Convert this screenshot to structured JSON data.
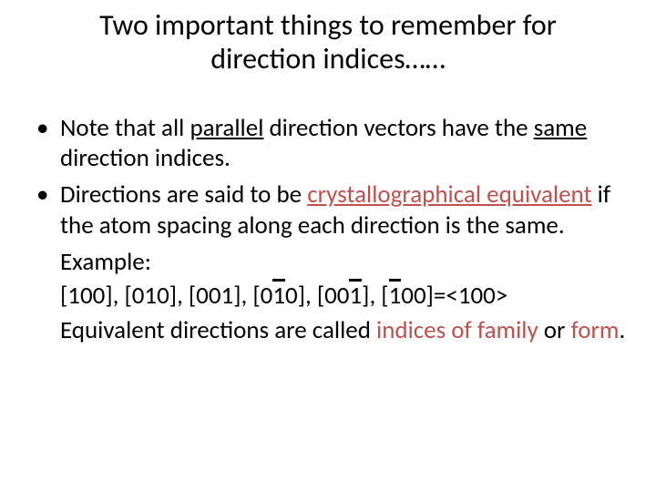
{
  "colors": {
    "text": "#000000",
    "accent": "#c0504d",
    "background": "#ffffff"
  },
  "typography": {
    "title_fontsize": 32,
    "body_fontsize": 27,
    "font_family": "Calibri"
  },
  "title": {
    "line1": "Two important things to remember for",
    "line2": "direction indices……"
  },
  "bullets": {
    "b1": {
      "t1": "Note that all ",
      "parallel": "parallel",
      "t2": " direction vectors have the ",
      "same": "same",
      "t3": " direction indices."
    },
    "b2": {
      "t1": "Directions are said to be ",
      "cryst": "crystallographical equivalent",
      "t2": " if the atom spacing along each direction is the same."
    }
  },
  "example": {
    "label": "Example:",
    "dirs": {
      "d1": "[100], ",
      "d2": "[010], ",
      "d3": "[001], ",
      "d4a": "[0",
      "d4bar": "1",
      "d4b": "0], ",
      "d5a": "[00",
      "d5bar": "1",
      "d5b": "], ",
      "d6a": "[",
      "d6bar": "1",
      "d6b": "00]",
      "eq": "=<100>"
    },
    "closing": {
      "t1": "Equivalent directions are called ",
      "iof": "indices of family",
      "t2": " or ",
      "form": "form",
      "t3": "."
    }
  }
}
